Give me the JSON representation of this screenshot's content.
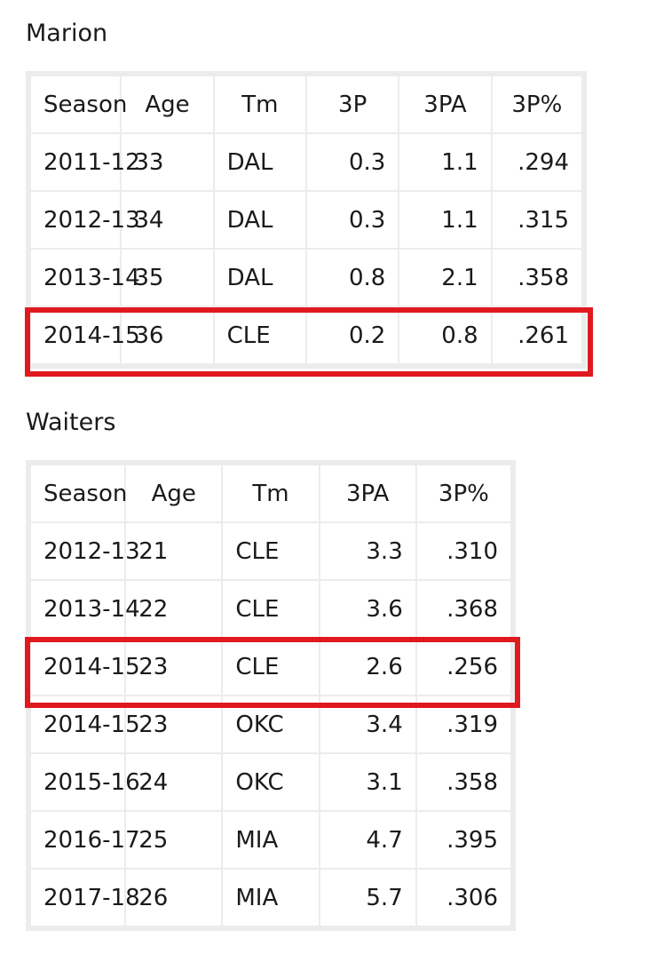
{
  "sections": [
    {
      "title": "Marion",
      "columns": [
        "Season",
        "Age",
        "Tm",
        "3P",
        "3PA",
        "3P%"
      ],
      "rows": [
        [
          "2011-12",
          "33",
          "DAL",
          "0.3",
          "1.1",
          ".294"
        ],
        [
          "2012-13",
          "34",
          "DAL",
          "0.3",
          "1.1",
          ".315"
        ],
        [
          "2013-14",
          "35",
          "DAL",
          "0.8",
          "2.1",
          ".358"
        ],
        [
          "2014-15",
          "36",
          "CLE",
          "0.2",
          "0.8",
          ".261"
        ]
      ],
      "highlighted_row": 3
    },
    {
      "title": "Waiters",
      "columns": [
        "Season",
        "Age",
        "Tm",
        "3PA",
        "3P%"
      ],
      "rows": [
        [
          "2012-13",
          "21",
          "CLE",
          "3.3",
          ".310"
        ],
        [
          "2013-14",
          "22",
          "CLE",
          "3.6",
          ".368"
        ],
        [
          "2014-15",
          "23",
          "CLE",
          "2.6",
          ".256"
        ],
        [
          "2014-15",
          "23",
          "OKC",
          "3.4",
          ".319"
        ],
        [
          "2015-16",
          "24",
          "OKC",
          "3.1",
          ".358"
        ],
        [
          "2016-17",
          "25",
          "MIA",
          "4.7",
          ".395"
        ],
        [
          "2017-18",
          "26",
          "MIA",
          "5.7",
          ".306"
        ]
      ],
      "highlighted_row": 2
    }
  ],
  "colors": {
    "highlight": "#e0191f",
    "grid": "#ececec",
    "text": "#1a1a1a"
  }
}
